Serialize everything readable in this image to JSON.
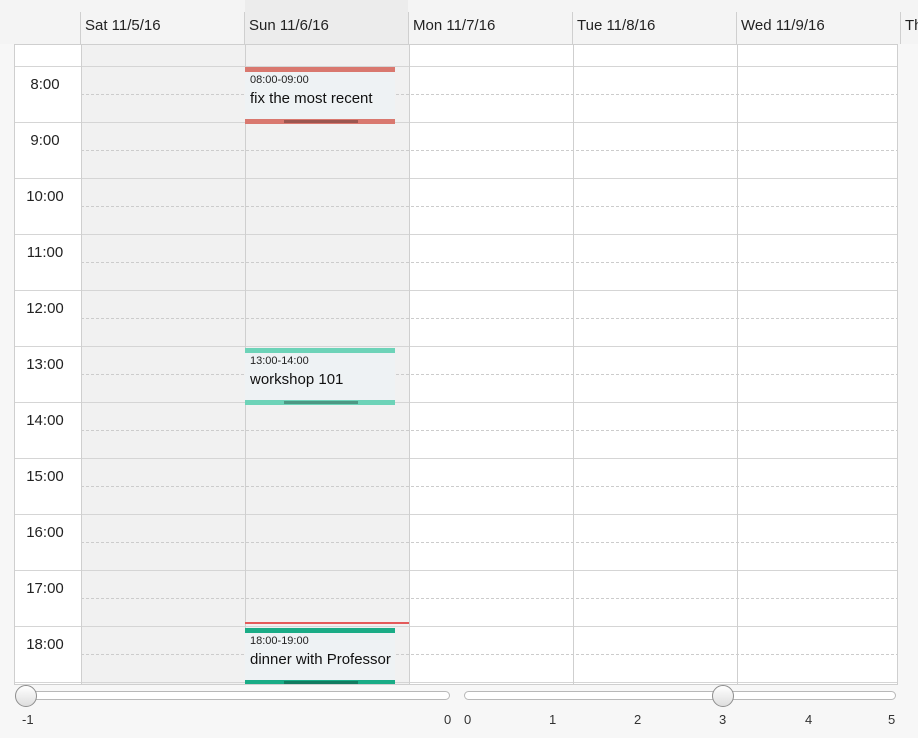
{
  "columns": [
    {
      "label": "Sat 11/5/16"
    },
    {
      "label": "Sun 11/6/16"
    },
    {
      "label": "Mon 11/7/16"
    },
    {
      "label": "Tue 11/8/16"
    },
    {
      "label": "Wed 11/9/16"
    },
    {
      "label": "Th"
    }
  ],
  "hours": [
    "8:00",
    "9:00",
    "10:00",
    "11:00",
    "12:00",
    "13:00",
    "14:00",
    "15:00",
    "16:00",
    "17:00",
    "18:00"
  ],
  "events": [
    {
      "time": "08:00-09:00",
      "title": "fix the most recent",
      "color": "#d9786f"
    },
    {
      "time": "13:00-14:00",
      "title": "workshop 101",
      "color": "#6dd3b8"
    },
    {
      "time": "18:00-19:00",
      "title": "dinner with Professor",
      "color": "#1aac86"
    }
  ],
  "now_line_color": "#e35a5a",
  "slider_left": {
    "ticks": [
      "-1",
      "0"
    ],
    "value": -1
  },
  "slider_right": {
    "ticks": [
      "0",
      "1",
      "2",
      "3",
      "4",
      "5"
    ],
    "value": 3
  }
}
